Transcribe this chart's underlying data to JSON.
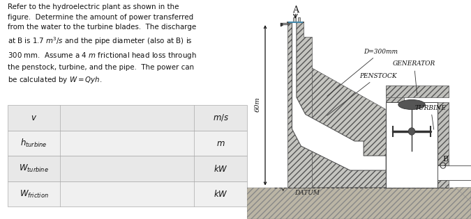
{
  "text": "Refer to the hydroelectric plant as shown in the\nfigure.  Determine the amount of power transferred\nfrom the water to the turbine blades.  The discharge\nat B is 1.7 m³/s and the pipe diameter (also at B) is\n300 mm.  Assume a 4 m frictional head loss through\nthe penstock, turbine, and the pipe.  The power can\nbe calculated by W = Qyh.",
  "table_rows": [
    {
      "label": "$v$",
      "unit": "$m/s$"
    },
    {
      "label": "$h_{turbine}$",
      "unit": "$m$"
    },
    {
      "label": "$W_{turbine}$",
      "unit": "$kW$"
    },
    {
      "label": "$W_{friction}$",
      "unit": "$kW$"
    }
  ],
  "table_bg_odd": "#e8e8e8",
  "table_bg_even": "#f0f0f0",
  "table_border": "#aaaaaa",
  "sketch_bg": "#f5f3ee",
  "dam_fc": "#c8c8c4",
  "dam_ec": "#555555",
  "pipe_fc": "#ffffff",
  "ground_fc": "#c8bfaa",
  "text_color": "#111111",
  "annotation_color": "#222222"
}
